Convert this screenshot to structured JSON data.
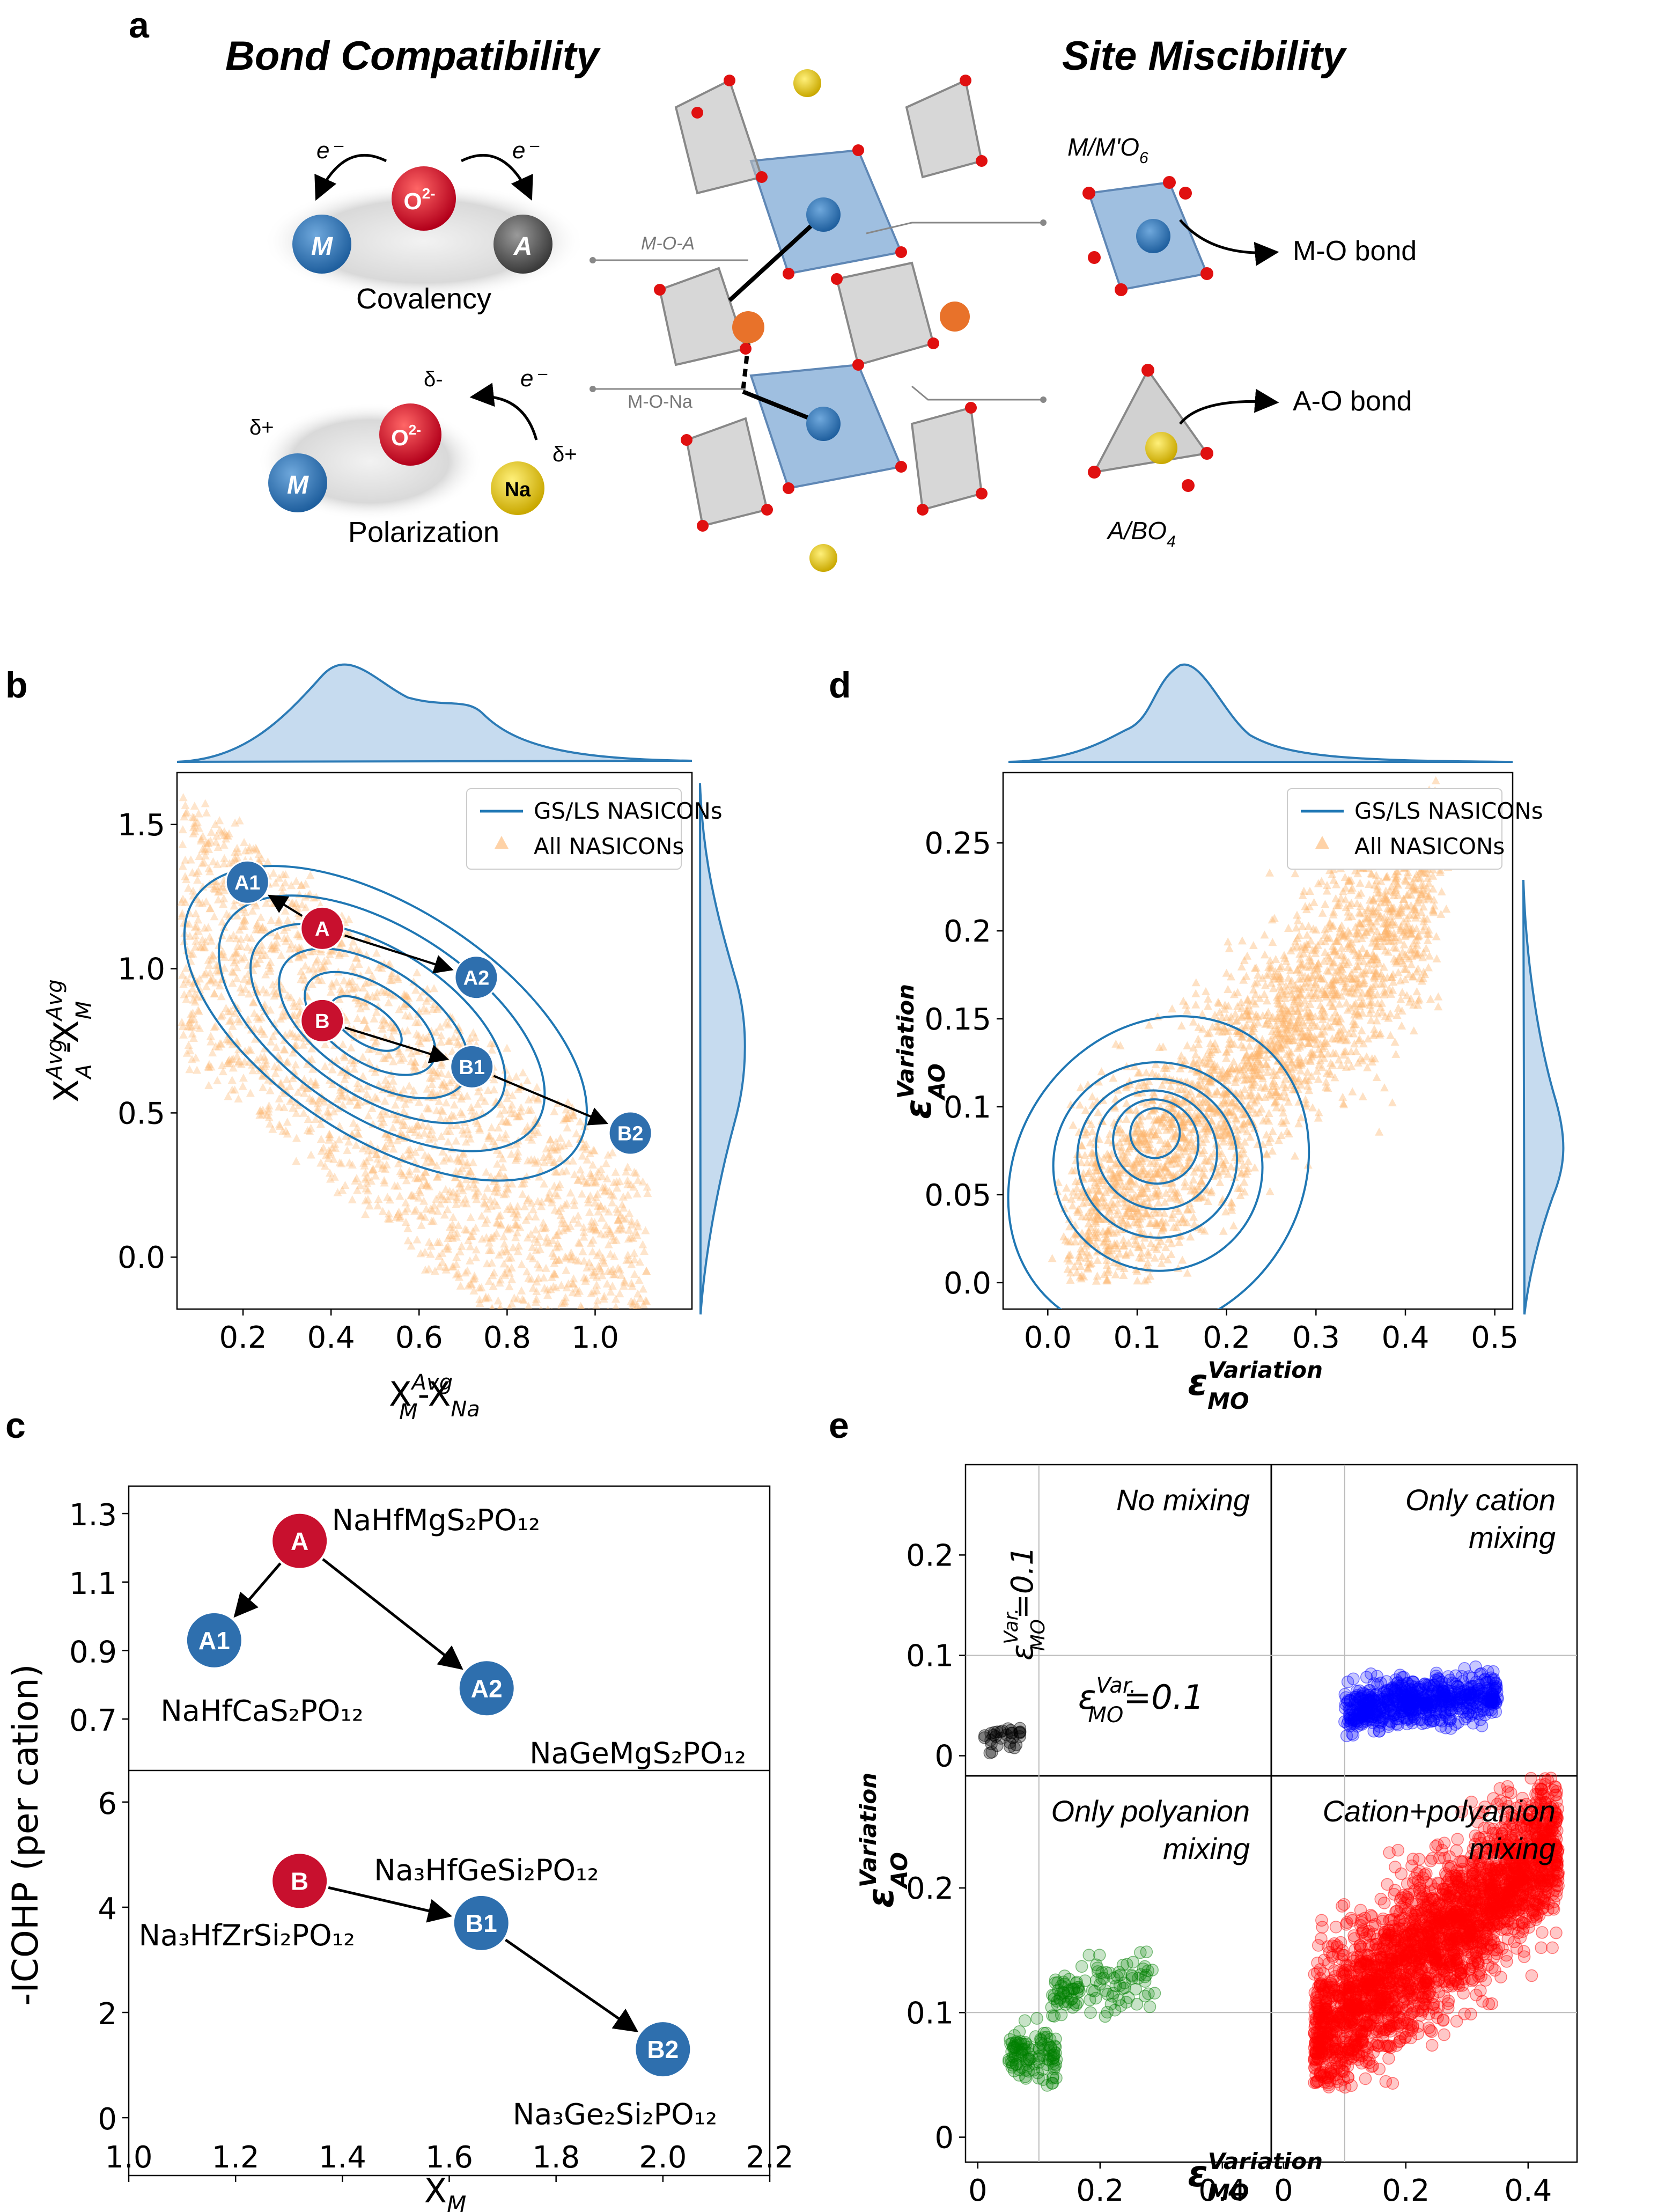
{
  "panels": {
    "a": "a",
    "b": "b",
    "c": "c",
    "d": "d",
    "e": "e"
  },
  "panel_a": {
    "bond_compatibility": "Bond Compatibility",
    "site_miscibility": "Site Miscibility",
    "covalency": "Covalency",
    "polarization": "Polarization",
    "electron": "e⁻",
    "oxygen": "O",
    "oxygen_charge": "2-",
    "metal": "M",
    "anion_site": "A",
    "sodium": "Na",
    "delta_plus": "δ+",
    "delta_minus": "δ-",
    "m_o_a": "M-O-A",
    "m_o_na": "M-O-Na",
    "octa_label_pre": "M/M'O",
    "octa_label_sub": "6",
    "tetra_label_pre": "A/BO",
    "tetra_label_sub": "4",
    "m_o_bond": "M-O bond",
    "a_o_bond": "A-O bond",
    "colors": {
      "blue": "#2e6fae",
      "red": "#c8102e",
      "yellow": "#e0c020",
      "gray": "#555555",
      "orange": "#fdb46c",
      "line": "#1f77b4"
    }
  },
  "chart_data": [
    {
      "id": "b",
      "type": "scatter",
      "xlabel_main": "X",
      "xlabel_sup": "Avg",
      "xlabel_sub": "M",
      "xlabel_tail": "-X",
      "xlabel_sub2": "Na",
      "ylabel_main": "X",
      "ylabel_sup": "Avg",
      "ylabel_sub": "A",
      "ylabel_mid": " -X",
      "ylabel_sup2": "Avg",
      "ylabel_sub2": "M",
      "xlim": [
        0.05,
        1.22
      ],
      "ylim": [
        -0.18,
        1.68
      ],
      "xticks": [
        0.2,
        0.4,
        0.6,
        0.8,
        1.0
      ],
      "xtick_labels": [
        "0.2",
        "0.4",
        "0.6",
        "0.8",
        "1.0"
      ],
      "yticks": [
        0.0,
        0.5,
        1.0,
        1.5
      ],
      "ytick_labels": [
        "0.0",
        "0.5",
        "1.0",
        "1.5"
      ],
      "legend": [
        "GS/LS NASICONs",
        "All NASICONs"
      ],
      "legend_position": "top-right",
      "points": [
        {
          "label": "A",
          "x": 0.38,
          "y": 1.14,
          "kind": "red"
        },
        {
          "label": "A1",
          "x": 0.21,
          "y": 1.3,
          "kind": "blue"
        },
        {
          "label": "A2",
          "x": 0.73,
          "y": 0.97,
          "kind": "blue"
        },
        {
          "label": "B",
          "x": 0.38,
          "y": 0.82,
          "kind": "red"
        },
        {
          "label": "B1",
          "x": 0.72,
          "y": 0.66,
          "kind": "blue"
        },
        {
          "label": "B2",
          "x": 1.08,
          "y": 0.43,
          "kind": "blue"
        }
      ],
      "arrows": [
        [
          "A",
          "A1"
        ],
        [
          "A",
          "A2"
        ],
        [
          "B",
          "B1"
        ],
        [
          "B1",
          "B2"
        ]
      ],
      "background_band": {
        "series": "All NASICONs",
        "slope": -1.3,
        "intercept_range": [
          0.8,
          1.72
        ],
        "x_range": [
          0.06,
          1.12
        ]
      },
      "contour_center": [
        0.48,
        0.81
      ]
    },
    {
      "id": "d",
      "type": "scatter",
      "xlabel_main": "ε",
      "xlabel_sup": "Variation",
      "xlabel_sub": "MO",
      "ylabel_main": "ε",
      "ylabel_sup": "Variation",
      "ylabel_sub": "AO",
      "xlim": [
        -0.05,
        0.52
      ],
      "ylim": [
        -0.015,
        0.29
      ],
      "xticks": [
        0.0,
        0.1,
        0.2,
        0.3,
        0.4,
        0.5
      ],
      "xtick_labels": [
        "0.0",
        "0.1",
        "0.2",
        "0.3",
        "0.4",
        "0.5"
      ],
      "yticks": [
        0.0,
        0.05,
        0.1,
        0.15,
        0.2,
        0.25
      ],
      "ytick_labels": [
        "0.0",
        "0.05",
        "0.1",
        "0.15",
        "0.2",
        "0.25"
      ],
      "legend": [
        "GS/LS NASICONs",
        "All NASICONs"
      ],
      "legend_position": "top-right",
      "contour_center": [
        0.12,
        0.085
      ]
    },
    {
      "id": "c",
      "type": "scatter",
      "xlabel_main": "X",
      "xlabel_sub": "M",
      "ylabel": "-ICOHP (per cation)",
      "xlim": [
        1.0,
        2.2
      ],
      "xticks": [
        1.0,
        1.2,
        1.4,
        1.6,
        1.8,
        2.0,
        2.2
      ],
      "xtick_labels": [
        "1.0",
        "1.2",
        "1.4",
        "1.6",
        "1.8",
        "2.0",
        "2.2"
      ],
      "top": {
        "ylim": [
          0.55,
          1.38
        ],
        "yticks": [
          0.7,
          0.9,
          1.1,
          1.3
        ],
        "ytick_labels": [
          "0.7",
          "0.9",
          "1.1",
          "1.3"
        ],
        "points": [
          {
            "label": "A",
            "x": 1.32,
            "y": 1.22,
            "kind": "red",
            "formula": "NaHfMgS₂PO₁₂"
          },
          {
            "label": "A1",
            "x": 1.16,
            "y": 0.93,
            "kind": "blue",
            "formula": "NaHfCaS₂PO₁₂"
          },
          {
            "label": "A2",
            "x": 1.67,
            "y": 0.79,
            "kind": "blue",
            "formula": "NaGeMgS₂PO₁₂"
          }
        ],
        "arrows": [
          [
            "A",
            "A1"
          ],
          [
            "A",
            "A2"
          ]
        ]
      },
      "bottom": {
        "ylim": [
          -1.1,
          6.6
        ],
        "yticks": [
          0,
          2,
          4,
          6
        ],
        "ytick_labels": [
          "0",
          "2",
          "4",
          "6"
        ],
        "points": [
          {
            "label": "B",
            "x": 1.32,
            "y": 4.5,
            "kind": "red",
            "formula": "Na₃HfZrSi₂PO₁₂"
          },
          {
            "label": "B1",
            "x": 1.66,
            "y": 3.7,
            "kind": "blue",
            "formula": "Na₃HfGeSi₂PO₁₂"
          },
          {
            "label": "B2",
            "x": 2.0,
            "y": 1.3,
            "kind": "blue",
            "formula": "Na₃Ge₂Si₂PO₁₂"
          }
        ],
        "arrows": [
          [
            "B",
            "B1"
          ],
          [
            "B1",
            "B2"
          ]
        ]
      }
    },
    {
      "id": "e",
      "type": "scatter",
      "xlabel_main": "ε",
      "xlabel_sup": "Variation",
      "xlabel_sub": "MO",
      "ylabel_main": "ε",
      "ylabel_sup": "Variation",
      "ylabel_sub": "AO",
      "xlim": [
        -0.02,
        0.48
      ],
      "ylim": [
        -0.02,
        0.29
      ],
      "xticks": [
        0,
        0.2,
        0.4
      ],
      "xtick_labels": [
        "0",
        "0.2",
        "0.4"
      ],
      "yticks": [
        0,
        0.1,
        0.2
      ],
      "ytick_labels": [
        "0",
        "0.1",
        "0.2"
      ],
      "threshold": 0.1,
      "threshold_label_main": "ε",
      "threshold_label_sup": "Var.",
      "threshold_label_sub": "MO",
      "threshold_label_tail": "=0.1",
      "quadrants": [
        {
          "name": "No mixing",
          "lines": [
            "No mixing"
          ],
          "color": "#000000",
          "center": [
            0.04,
            0.017
          ],
          "spread": [
            0.03,
            0.01
          ],
          "n": 30
        },
        {
          "name": "Only cation mixing",
          "lines": [
            "Only cation",
            "mixing"
          ],
          "color": "#0000ff",
          "center": [
            0.2,
            0.05
          ],
          "spread": [
            0.1,
            0.03
          ],
          "n": 600
        },
        {
          "name": "Only polyanion mixing",
          "lines": [
            "Only polyanion",
            "mixing"
          ],
          "color": "#008000",
          "center": [
            0.18,
            0.11
          ],
          "spread": [
            0.08,
            0.03
          ],
          "n": 220
        },
        {
          "name": "Cation+polyanion mixing",
          "lines": [
            "Cation+polyanion",
            "mixing"
          ],
          "color": "#ff0000",
          "center": [
            0.23,
            0.16
          ],
          "spread": [
            0.15,
            0.08
          ],
          "n": 2500
        }
      ]
    }
  ]
}
